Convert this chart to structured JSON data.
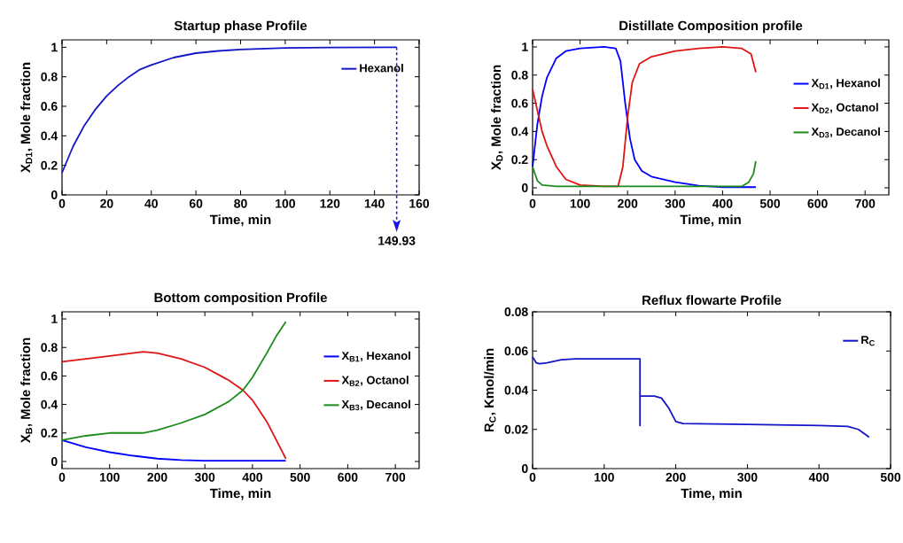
{
  "chart_data": [
    {
      "type": "line",
      "title": "Startup phase Profile",
      "xlabel": "Time, min",
      "ylabel": "X$_{D1}$, Mole fraction",
      "xlim": [
        0,
        160
      ],
      "ylim": [
        0,
        1.05
      ],
      "xticks": [
        0,
        20,
        40,
        60,
        80,
        100,
        120,
        140,
        160
      ],
      "yticks": [
        0,
        0.2,
        0.4,
        0.6,
        0.8,
        1
      ],
      "legend": "top right",
      "series": [
        {
          "name": "Hexanol",
          "color": "#1414c8",
          "x": [
            0,
            5,
            10,
            15,
            20,
            25,
            30,
            35,
            40,
            50,
            60,
            70,
            80,
            100,
            120,
            149.93
          ],
          "values": [
            0.15,
            0.33,
            0.47,
            0.58,
            0.67,
            0.74,
            0.8,
            0.85,
            0.88,
            0.93,
            0.96,
            0.975,
            0.985,
            0.995,
            0.998,
            1.0
          ]
        }
      ],
      "ref_lines": [
        {
          "axis": "x",
          "value": 149.93,
          "label": "149.93",
          "color": "#1414e6",
          "line_style": "dashed"
        }
      ]
    },
    {
      "type": "line",
      "title": "Distillate Composition profile",
      "xlabel": "Time, min",
      "ylabel": "X$_{D}$, Mole fraction",
      "xlim": [
        0,
        750
      ],
      "ylim": [
        -0.05,
        1.05
      ],
      "xticks": [
        0,
        100,
        200,
        300,
        400,
        500,
        600,
        700
      ],
      "yticks": [
        0,
        0.2,
        0.4,
        0.6,
        0.8,
        1
      ],
      "legend": "right",
      "series": [
        {
          "name": "X$_{D1}$, Hexanol",
          "color": "#0000ff",
          "x": [
            0,
            10,
            20,
            30,
            50,
            70,
            100,
            150,
            175,
            185,
            195,
            205,
            215,
            230,
            250,
            300,
            350,
            400,
            470
          ],
          "values": [
            0.15,
            0.45,
            0.65,
            0.78,
            0.92,
            0.97,
            0.99,
            1.0,
            0.99,
            0.9,
            0.6,
            0.35,
            0.2,
            0.12,
            0.08,
            0.04,
            0.015,
            0.005,
            0.005
          ]
        },
        {
          "name": "X$_{D2}$, Octanol",
          "color": "#e01414",
          "x": [
            0,
            10,
            20,
            30,
            50,
            70,
            100,
            150,
            180,
            190,
            200,
            210,
            225,
            250,
            300,
            350,
            400,
            440,
            460,
            470
          ],
          "values": [
            0.7,
            0.55,
            0.4,
            0.3,
            0.15,
            0.06,
            0.02,
            0.01,
            0.01,
            0.15,
            0.5,
            0.75,
            0.88,
            0.93,
            0.97,
            0.99,
            1.0,
            0.99,
            0.95,
            0.82
          ]
        },
        {
          "name": "X$_{D3}$, Decanol",
          "color": "#1a8c1a",
          "x": [
            0,
            10,
            20,
            50,
            440,
            455,
            465,
            470
          ],
          "values": [
            0.15,
            0.05,
            0.02,
            0.01,
            0.01,
            0.04,
            0.1,
            0.19
          ]
        }
      ]
    },
    {
      "type": "line",
      "title": "Bottom composition  Profile",
      "xlabel": "Time, min",
      "ylabel": "X$_{B}$, Mole fraction",
      "xlim": [
        0,
        750
      ],
      "ylim": [
        -0.05,
        1.05
      ],
      "xticks": [
        0,
        100,
        200,
        300,
        400,
        500,
        600,
        700
      ],
      "yticks": [
        0,
        0.2,
        0.4,
        0.6,
        0.8,
        1
      ],
      "legend": "right",
      "series": [
        {
          "name": "X$_{B1}$, Hexanol",
          "color": "#0000ff",
          "x": [
            0,
            50,
            100,
            150,
            200,
            250,
            300,
            470
          ],
          "values": [
            0.15,
            0.1,
            0.065,
            0.04,
            0.02,
            0.01,
            0.005,
            0.005
          ]
        },
        {
          "name": "X$_{B2}$, Octanol",
          "color": "#e01414",
          "x": [
            0,
            50,
            100,
            170,
            200,
            250,
            300,
            350,
            380,
            400,
            430,
            450,
            470
          ],
          "values": [
            0.7,
            0.72,
            0.74,
            0.77,
            0.76,
            0.72,
            0.66,
            0.57,
            0.5,
            0.43,
            0.28,
            0.15,
            0.02
          ]
        },
        {
          "name": "X$_{B3}$, Decanol",
          "color": "#1a8c1a",
          "x": [
            0,
            50,
            100,
            170,
            200,
            250,
            300,
            350,
            380,
            400,
            430,
            450,
            470
          ],
          "values": [
            0.15,
            0.18,
            0.2,
            0.2,
            0.22,
            0.27,
            0.33,
            0.42,
            0.5,
            0.59,
            0.76,
            0.88,
            0.98
          ]
        }
      ]
    },
    {
      "type": "line",
      "title": "Reflux flowarte Profile",
      "xlabel": "Time, min",
      "ylabel": "R$_{C}$, Kmol/min",
      "xlim": [
        0,
        500
      ],
      "ylim": [
        0,
        0.08
      ],
      "xticks": [
        0,
        100,
        200,
        300,
        400,
        500
      ],
      "yticks": [
        0,
        0.02,
        0.04,
        0.06,
        0.08
      ],
      "legend": "top right",
      "series": [
        {
          "name": "R$_{C}$",
          "color": "#1414c8",
          "x": [
            0,
            5,
            10,
            20,
            40,
            60,
            150,
            150,
            150,
            170,
            180,
            190,
            200,
            210,
            300,
            400,
            440,
            455,
            470
          ],
          "values": [
            0.057,
            0.054,
            0.0535,
            0.054,
            0.0555,
            0.056,
            0.056,
            0.022,
            0.037,
            0.037,
            0.036,
            0.031,
            0.024,
            0.023,
            0.0225,
            0.022,
            0.0215,
            0.02,
            0.016
          ]
        }
      ]
    }
  ]
}
